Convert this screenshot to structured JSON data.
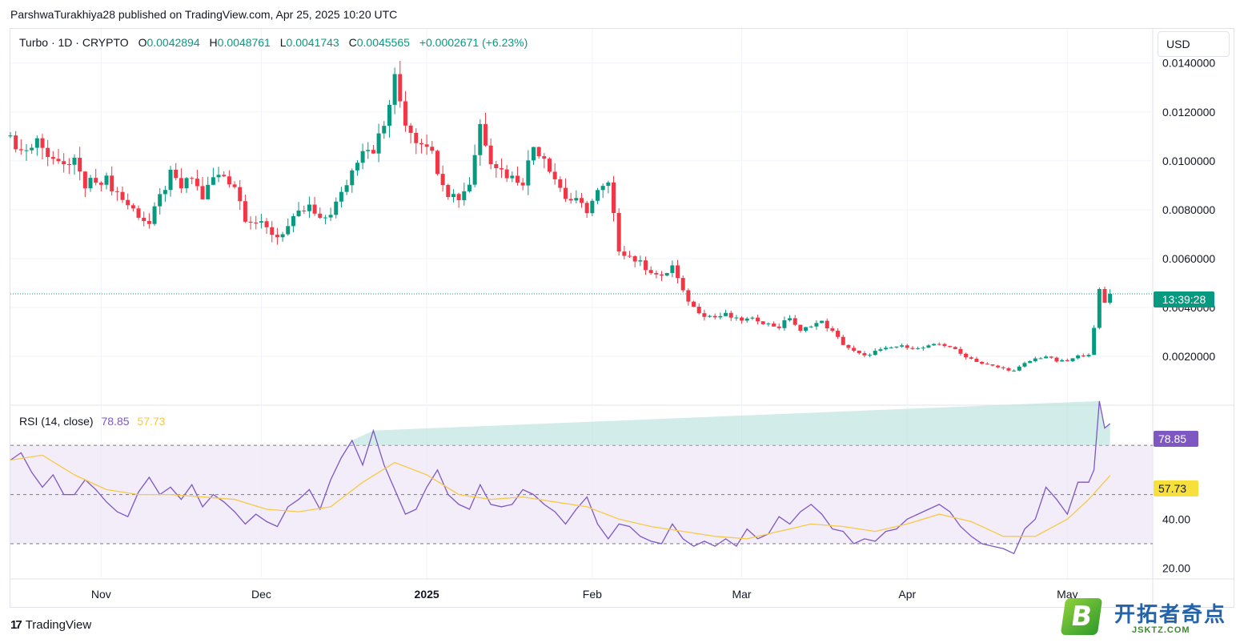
{
  "header": {
    "publisher": "ParshwaTurakhiya28 published on TradingView.com, Apr 25, 2025 10:20 UTC"
  },
  "legend": {
    "symbol": "Turbo · 1D · CRYPTO",
    "open_label": "O",
    "open": "0.0042894",
    "high_label": "H",
    "high": "0.0048761",
    "low_label": "L",
    "low": "0.0041743",
    "close_label": "C",
    "close": "0.0045565",
    "change": "+0.0002671 (+6.23%)"
  },
  "currency_button": "USD",
  "countdown_badge": "13:39:28",
  "rsi_legend": {
    "label": "RSI (14, close)",
    "rsi_value": "78.85",
    "ma_value": "57.73"
  },
  "rsi_badges": {
    "rsi": "78.85",
    "ma": "57.73"
  },
  "footer": {
    "brand": "TradingView"
  },
  "watermark": {
    "title": "开拓者奇点",
    "sub": "JSKTZ.COM",
    "mark": "B"
  },
  "colors": {
    "up": "#089981",
    "down": "#f23645",
    "rsi": "#7e57c2",
    "rsi_ma": "#f7c948",
    "rsi_band": "#ede7f6"
  },
  "chart_data": [
    {
      "type": "candlestick",
      "title": "Turbo · 1D · CRYPTO",
      "y_ticks": [
        "0.0140000",
        "0.0120000",
        "0.0100000",
        "0.0080000",
        "0.0060000",
        "0.0040000",
        "0.0020000"
      ],
      "y_tick_values": [
        0.014,
        0.012,
        0.01,
        0.008,
        0.006,
        0.004,
        0.002
      ],
      "ylim": [
        0.0,
        0.0154
      ],
      "x_ticks": [
        "Nov",
        "Dec",
        "2025",
        "Feb",
        "Mar",
        "Apr",
        "May"
      ],
      "x_tick_days": [
        0,
        30,
        61,
        92,
        120,
        151,
        181
      ],
      "x_range_days": [
        -17,
        197
      ],
      "last_price": 0.0045565,
      "close_path": [
        [
          -17,
          0.011
        ],
        [
          -15,
          0.0104
        ],
        [
          -13,
          0.0108
        ],
        [
          -11,
          0.0107
        ],
        [
          -9,
          0.0101
        ],
        [
          -7,
          0.0097
        ],
        [
          -5,
          0.0101
        ],
        [
          -3,
          0.0089
        ],
        [
          -1,
          0.0093
        ],
        [
          1,
          0.0092
        ],
        [
          3,
          0.0087
        ],
        [
          5,
          0.0082
        ],
        [
          7,
          0.0078
        ],
        [
          9,
          0.0074
        ],
        [
          11,
          0.0085
        ],
        [
          13,
          0.0094
        ],
        [
          15,
          0.0089
        ],
        [
          17,
          0.0093
        ],
        [
          19,
          0.0085
        ],
        [
          21,
          0.0093
        ],
        [
          23,
          0.0094
        ],
        [
          25,
          0.009
        ],
        [
          27,
          0.0077
        ],
        [
          29,
          0.0075
        ],
        [
          31,
          0.0072
        ],
        [
          33,
          0.0069
        ],
        [
          35,
          0.0073
        ],
        [
          37,
          0.0078
        ],
        [
          39,
          0.0081
        ],
        [
          41,
          0.0075
        ],
        [
          43,
          0.0079
        ],
        [
          45,
          0.0086
        ],
        [
          47,
          0.0096
        ],
        [
          49,
          0.0106
        ],
        [
          51,
          0.0105
        ],
        [
          53,
          0.0114
        ],
        [
          55,
          0.0133
        ],
        [
          57,
          0.0116
        ],
        [
          59,
          0.0109
        ],
        [
          61,
          0.0108
        ],
        [
          63,
          0.0097
        ],
        [
          65,
          0.0087
        ],
        [
          67,
          0.0085
        ],
        [
          69,
          0.0091
        ],
        [
          71,
          0.0115
        ],
        [
          73,
          0.0101
        ],
        [
          75,
          0.0096
        ],
        [
          77,
          0.0093
        ],
        [
          79,
          0.0092
        ],
        [
          81,
          0.0106
        ],
        [
          83,
          0.0102
        ],
        [
          85,
          0.0093
        ],
        [
          87,
          0.0085
        ],
        [
          89,
          0.0083
        ],
        [
          91,
          0.008
        ],
        [
          93,
          0.0087
        ],
        [
          95,
          0.009
        ],
        [
          97,
          0.0064
        ],
        [
          99,
          0.0061
        ],
        [
          101,
          0.0058
        ],
        [
          103,
          0.0055
        ],
        [
          105,
          0.0052
        ],
        [
          107,
          0.0057
        ],
        [
          109,
          0.0046
        ],
        [
          111,
          0.004
        ],
        [
          113,
          0.0037
        ],
        [
          115,
          0.0036
        ],
        [
          117,
          0.0037
        ],
        [
          119,
          0.0035
        ],
        [
          121,
          0.0035
        ],
        [
          123,
          0.0035
        ],
        [
          125,
          0.0033
        ],
        [
          127,
          0.0032
        ],
        [
          129,
          0.0036
        ],
        [
          131,
          0.003
        ],
        [
          133,
          0.0033
        ],
        [
          135,
          0.0034
        ],
        [
          137,
          0.003
        ],
        [
          139,
          0.0025
        ],
        [
          141,
          0.0022
        ],
        [
          143,
          0.002
        ],
        [
          145,
          0.0022
        ],
        [
          147,
          0.0023
        ],
        [
          149,
          0.0024
        ],
        [
          151,
          0.0024
        ],
        [
          153,
          0.0023
        ],
        [
          155,
          0.0024
        ],
        [
          157,
          0.0025
        ],
        [
          159,
          0.0024
        ],
        [
          161,
          0.0021
        ],
        [
          163,
          0.0019
        ],
        [
          165,
          0.0017
        ],
        [
          167,
          0.0016
        ],
        [
          169,
          0.0015
        ],
        [
          171,
          0.0014
        ],
        [
          173,
          0.0017
        ],
        [
          175,
          0.0019
        ],
        [
          177,
          0.002
        ],
        [
          179,
          0.0018
        ],
        [
          181,
          0.0018
        ],
        [
          183,
          0.002
        ],
        [
          185,
          0.0021
        ],
        [
          186,
          0.0031
        ],
        [
          187,
          0.0047
        ],
        [
          188,
          0.0042
        ],
        [
          189,
          0.0045565
        ]
      ]
    },
    {
      "type": "line",
      "title": "RSI (14, close)",
      "y_ticks": [
        "40.00",
        "20.00"
      ],
      "y_tick_values": [
        40,
        20
      ],
      "ylim": [
        16,
        86
      ],
      "bands": [
        70,
        50,
        30
      ],
      "series": [
        {
          "name": "RSI",
          "color": "#7e57c2",
          "points": [
            [
              -17,
              64
            ],
            [
              -15,
              67
            ],
            [
              -13,
              59
            ],
            [
              -11,
              53
            ],
            [
              -9,
              58
            ],
            [
              -7,
              50
            ],
            [
              -5,
              50
            ],
            [
              -3,
              56
            ],
            [
              -1,
              52
            ],
            [
              1,
              47
            ],
            [
              3,
              43
            ],
            [
              5,
              41
            ],
            [
              7,
              51
            ],
            [
              9,
              57
            ],
            [
              11,
              50
            ],
            [
              13,
              53
            ],
            [
              15,
              48
            ],
            [
              17,
              54
            ],
            [
              19,
              45
            ],
            [
              21,
              50
            ],
            [
              23,
              47
            ],
            [
              25,
              43
            ],
            [
              27,
              38
            ],
            [
              29,
              42
            ],
            [
              31,
              39
            ],
            [
              33,
              37
            ],
            [
              35,
              45
            ],
            [
              37,
              48
            ],
            [
              39,
              52
            ],
            [
              41,
              44
            ],
            [
              43,
              56
            ],
            [
              45,
              65
            ],
            [
              47,
              72
            ],
            [
              49,
              62
            ],
            [
              51,
              76
            ],
            [
              53,
              62
            ],
            [
              55,
              52
            ],
            [
              57,
              42
            ],
            [
              59,
              44
            ],
            [
              61,
              53
            ],
            [
              63,
              60
            ],
            [
              65,
              50
            ],
            [
              67,
              46
            ],
            [
              69,
              44
            ],
            [
              71,
              54
            ],
            [
              73,
              46
            ],
            [
              75,
              45
            ],
            [
              77,
              46
            ],
            [
              79,
              52
            ],
            [
              81,
              50
            ],
            [
              83,
              46
            ],
            [
              85,
              43
            ],
            [
              87,
              38
            ],
            [
              89,
              44
            ],
            [
              91,
              49
            ],
            [
              93,
              38
            ],
            [
              95,
              32
            ],
            [
              97,
              38
            ],
            [
              99,
              37
            ],
            [
              101,
              33
            ],
            [
              103,
              31
            ],
            [
              105,
              30
            ],
            [
              107,
              38
            ],
            [
              109,
              32
            ],
            [
              111,
              29
            ],
            [
              113,
              31
            ],
            [
              115,
              29
            ],
            [
              117,
              32
            ],
            [
              119,
              29
            ],
            [
              121,
              36
            ],
            [
              123,
              32
            ],
            [
              125,
              34
            ],
            [
              127,
              41
            ],
            [
              129,
              38
            ],
            [
              131,
              43
            ],
            [
              133,
              46
            ],
            [
              135,
              42
            ],
            [
              137,
              36
            ],
            [
              139,
              35
            ],
            [
              141,
              30
            ],
            [
              143,
              32
            ],
            [
              145,
              31
            ],
            [
              147,
              35
            ],
            [
              149,
              36
            ],
            [
              151,
              40
            ],
            [
              153,
              42
            ],
            [
              155,
              44
            ],
            [
              157,
              46
            ],
            [
              159,
              43
            ],
            [
              161,
              37
            ],
            [
              163,
              33
            ],
            [
              165,
              30
            ],
            [
              167,
              29
            ],
            [
              169,
              28
            ],
            [
              171,
              26
            ],
            [
              173,
              36
            ],
            [
              175,
              40
            ],
            [
              177,
              53
            ],
            [
              179,
              48
            ],
            [
              181,
              42
            ],
            [
              183,
              55
            ],
            [
              185,
              55
            ],
            [
              186,
              60
            ],
            [
              187,
              88
            ],
            [
              188,
              77
            ],
            [
              189,
              78.85
            ]
          ]
        },
        {
          "name": "RSI-based MA",
          "color": "#f7c948",
          "points": [
            [
              -17,
              64
            ],
            [
              -11,
              66
            ],
            [
              -5,
              58
            ],
            [
              1,
              52
            ],
            [
              7,
              50
            ],
            [
              13,
              50
            ],
            [
              19,
              49
            ],
            [
              25,
              48
            ],
            [
              31,
              44
            ],
            [
              37,
              43
            ],
            [
              43,
              45
            ],
            [
              49,
              55
            ],
            [
              55,
              63
            ],
            [
              61,
              58
            ],
            [
              67,
              50
            ],
            [
              73,
              48
            ],
            [
              79,
              49
            ],
            [
              85,
              47
            ],
            [
              91,
              45
            ],
            [
              97,
              40
            ],
            [
              103,
              37
            ],
            [
              109,
              35
            ],
            [
              115,
              33
            ],
            [
              121,
              32
            ],
            [
              127,
              35
            ],
            [
              133,
              38
            ],
            [
              139,
              37
            ],
            [
              145,
              35
            ],
            [
              151,
              38
            ],
            [
              157,
              42
            ],
            [
              163,
              39
            ],
            [
              169,
              33
            ],
            [
              175,
              33
            ],
            [
              181,
              40
            ],
            [
              185,
              48
            ],
            [
              189,
              57.73
            ]
          ]
        }
      ]
    }
  ]
}
